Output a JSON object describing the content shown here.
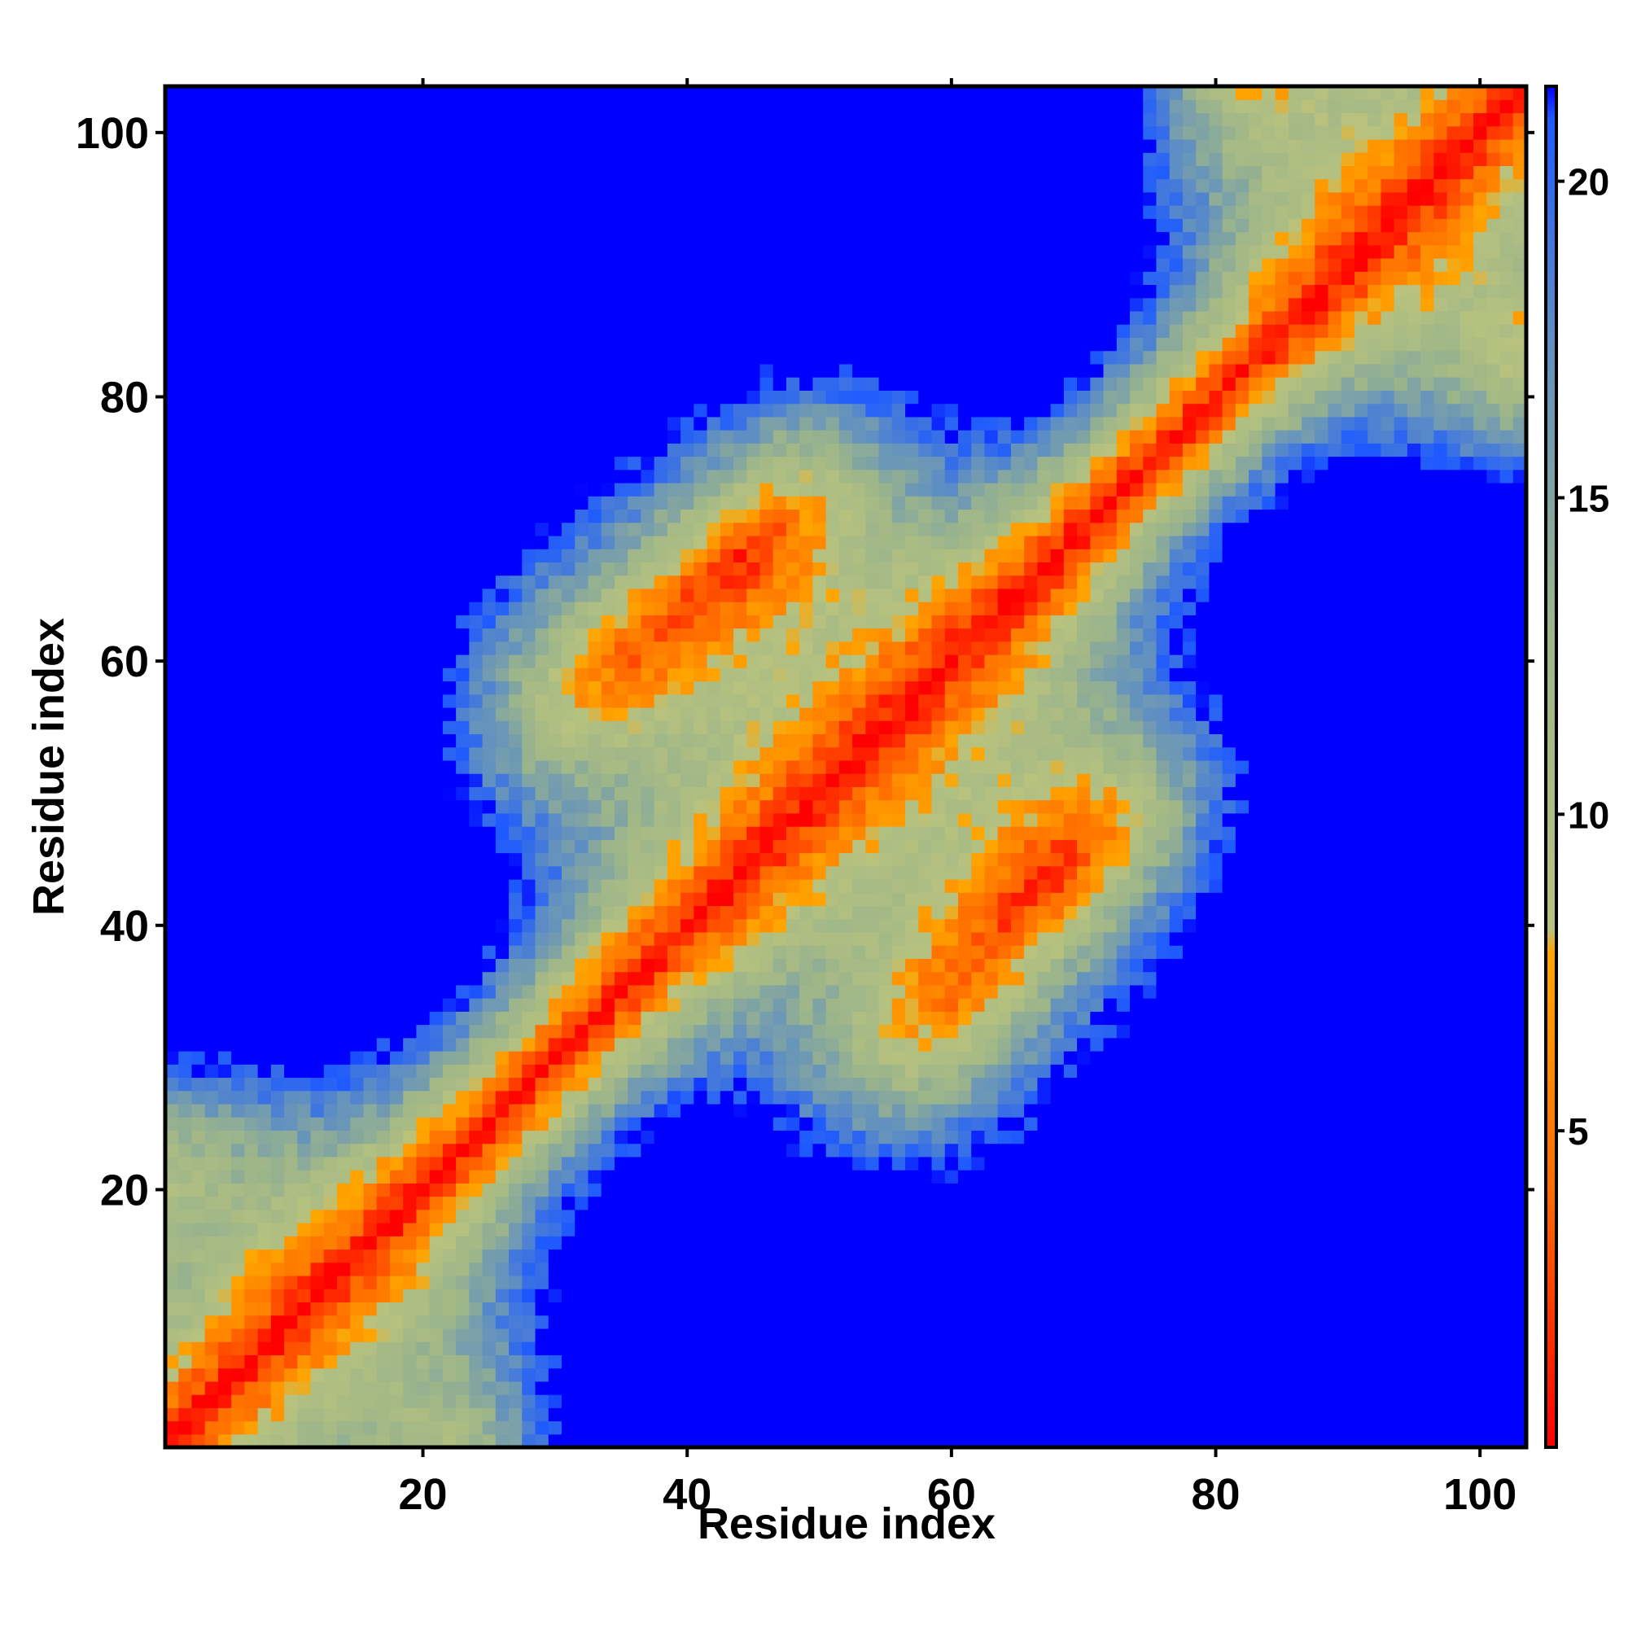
{
  "chart_data": {
    "type": "heatmap",
    "title": "",
    "xlabel": "Residue index",
    "ylabel": "Residue index",
    "xlim": [
      0.5,
      103.5
    ],
    "ylim": [
      0.5,
      103.5
    ],
    "n_residues": 103,
    "x_ticks": [
      20,
      40,
      60,
      80,
      100
    ],
    "y_ticks": [
      20,
      40,
      60,
      80,
      100
    ],
    "x_tick_labels": [
      "20",
      "40",
      "60",
      "80",
      "100"
    ],
    "y_tick_labels": [
      "20",
      "40",
      "60",
      "80",
      "100"
    ],
    "colorbar": {
      "range": [
        0,
        21.5
      ],
      "ticks": [
        5,
        10,
        15,
        20
      ],
      "tick_labels": [
        "5",
        "10",
        "15",
        "20"
      ],
      "stops": [
        {
          "value": 0,
          "color": "#ff0000"
        },
        {
          "value": 4,
          "color": "#ff6a00"
        },
        {
          "value": 7.8,
          "color": "#ffa500"
        },
        {
          "value": 8.2,
          "color": "#b8c27e"
        },
        {
          "value": 13,
          "color": "#9cb58a"
        },
        {
          "value": 17.5,
          "color": "#5f8fc2"
        },
        {
          "value": 21,
          "color": "#1e5aff"
        },
        {
          "value": 21.5,
          "color": "#0000ff"
        }
      ]
    },
    "legend": "colorbar-right",
    "grid": false
  }
}
